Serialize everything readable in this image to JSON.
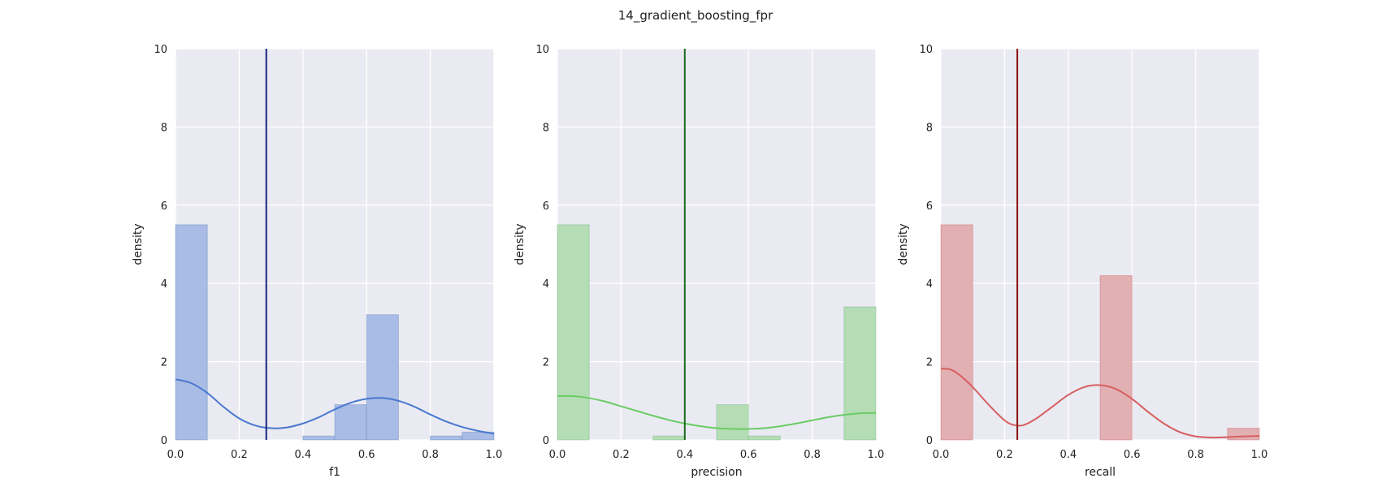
{
  "title": "14_gradient_boosting_fpr",
  "chart_data": [
    {
      "type": "histogram",
      "xlabel": "f1",
      "ylabel": "density",
      "xlim": [
        0,
        1
      ],
      "ylim": [
        0,
        10
      ],
      "xticks": [
        "0.0",
        "0.2",
        "0.4",
        "0.6",
        "0.8",
        "1.0"
      ],
      "yticks": [
        "0",
        "2",
        "4",
        "6",
        "8",
        "10"
      ],
      "grid": true,
      "bin_edges": [
        0,
        0.1,
        0.2,
        0.3,
        0.4,
        0.5,
        0.6,
        0.7,
        0.8,
        0.9,
        1.0
      ],
      "densities": [
        5.5,
        0,
        0,
        0,
        0.1,
        0.9,
        3.2,
        0,
        0.1,
        0.2
      ],
      "kde": [
        [
          0,
          1.55
        ],
        [
          0.05,
          1.45
        ],
        [
          0.1,
          1.2
        ],
        [
          0.15,
          0.85
        ],
        [
          0.2,
          0.55
        ],
        [
          0.25,
          0.37
        ],
        [
          0.3,
          0.3
        ],
        [
          0.35,
          0.32
        ],
        [
          0.4,
          0.42
        ],
        [
          0.45,
          0.58
        ],
        [
          0.5,
          0.78
        ],
        [
          0.55,
          0.95
        ],
        [
          0.6,
          1.05
        ],
        [
          0.65,
          1.07
        ],
        [
          0.7,
          1.0
        ],
        [
          0.75,
          0.85
        ],
        [
          0.8,
          0.65
        ],
        [
          0.85,
          0.47
        ],
        [
          0.9,
          0.33
        ],
        [
          0.95,
          0.23
        ],
        [
          1.0,
          0.16
        ]
      ],
      "mean": 0.285,
      "bar_color": "#4c72b0",
      "bar_fill": "#a9bce6",
      "kde_color": "#4878cf",
      "mean_color": "#1a237e"
    },
    {
      "type": "histogram",
      "xlabel": "precision",
      "ylabel": "density",
      "xlim": [
        0,
        1
      ],
      "ylim": [
        0,
        10
      ],
      "xticks": [
        "0.0",
        "0.2",
        "0.4",
        "0.6",
        "0.8",
        "1.0"
      ],
      "yticks": [
        "0",
        "2",
        "4",
        "6",
        "8",
        "10"
      ],
      "grid": true,
      "bin_edges": [
        0,
        0.1,
        0.2,
        0.3,
        0.4,
        0.5,
        0.6,
        0.7,
        0.8,
        0.9,
        1.0
      ],
      "densities": [
        5.5,
        0,
        0,
        0.1,
        0,
        0.9,
        0.1,
        0,
        0,
        3.4
      ],
      "kde": [
        [
          0,
          1.12
        ],
        [
          0.05,
          1.12
        ],
        [
          0.1,
          1.07
        ],
        [
          0.15,
          0.98
        ],
        [
          0.2,
          0.86
        ],
        [
          0.25,
          0.74
        ],
        [
          0.3,
          0.62
        ],
        [
          0.35,
          0.51
        ],
        [
          0.4,
          0.42
        ],
        [
          0.45,
          0.35
        ],
        [
          0.5,
          0.3
        ],
        [
          0.55,
          0.28
        ],
        [
          0.6,
          0.28
        ],
        [
          0.65,
          0.3
        ],
        [
          0.7,
          0.35
        ],
        [
          0.75,
          0.42
        ],
        [
          0.8,
          0.5
        ],
        [
          0.85,
          0.58
        ],
        [
          0.9,
          0.64
        ],
        [
          0.95,
          0.68
        ],
        [
          1.0,
          0.69
        ]
      ],
      "mean": 0.4,
      "bar_color": "#55a868",
      "bar_fill": "#b5ddb5",
      "kde_color": "#6acc65",
      "mean_color": "#1b6b1b"
    },
    {
      "type": "histogram",
      "xlabel": "recall",
      "ylabel": "density",
      "xlim": [
        0,
        1
      ],
      "ylim": [
        0,
        10
      ],
      "xticks": [
        "0.0",
        "0.2",
        "0.4",
        "0.6",
        "0.8",
        "1.0"
      ],
      "yticks": [
        "0",
        "2",
        "4",
        "6",
        "8",
        "10"
      ],
      "grid": true,
      "bin_edges": [
        0,
        0.1,
        0.2,
        0.3,
        0.4,
        0.5,
        0.6,
        0.7,
        0.8,
        0.9,
        1.0
      ],
      "densities": [
        5.5,
        0,
        0,
        0,
        0,
        4.2,
        0,
        0,
        0,
        0.3
      ],
      "kde": [
        [
          0,
          1.82
        ],
        [
          0.03,
          1.8
        ],
        [
          0.06,
          1.65
        ],
        [
          0.1,
          1.35
        ],
        [
          0.15,
          0.9
        ],
        [
          0.2,
          0.5
        ],
        [
          0.23,
          0.38
        ],
        [
          0.26,
          0.38
        ],
        [
          0.3,
          0.55
        ],
        [
          0.35,
          0.85
        ],
        [
          0.4,
          1.15
        ],
        [
          0.45,
          1.35
        ],
        [
          0.5,
          1.4
        ],
        [
          0.55,
          1.3
        ],
        [
          0.6,
          1.05
        ],
        [
          0.65,
          0.72
        ],
        [
          0.7,
          0.42
        ],
        [
          0.75,
          0.2
        ],
        [
          0.8,
          0.09
        ],
        [
          0.85,
          0.06
        ],
        [
          0.9,
          0.07
        ],
        [
          0.95,
          0.09
        ],
        [
          1.0,
          0.1
        ]
      ],
      "mean": 0.24,
      "bar_color": "#c44e52",
      "bar_fill": "#e2b0b3",
      "kde_color": "#d65f5f",
      "mean_color": "#8b1010"
    }
  ]
}
